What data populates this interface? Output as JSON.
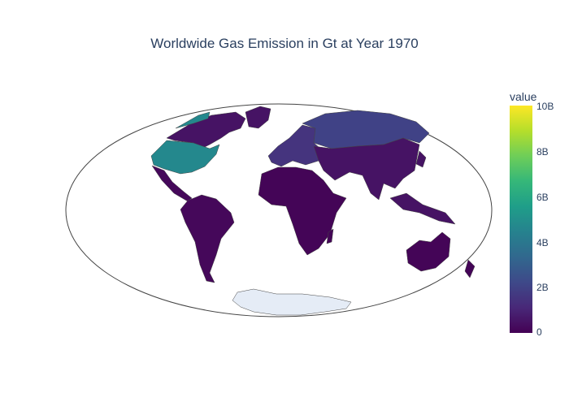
{
  "title": "Worldwide Gas Emission in Gt at Year 1970",
  "colorbar": {
    "title": "value",
    "ticks": [
      "10B",
      "8B",
      "6B",
      "4B",
      "2B",
      "0"
    ],
    "colors": [
      "#440154",
      "#482878",
      "#3e4989",
      "#31688e",
      "#26828e",
      "#1f9e89",
      "#35b779",
      "#6ece58",
      "#b5de2b",
      "#fde725"
    ],
    "range": [
      0,
      10000000000
    ]
  },
  "map": {
    "projection": "mollweide",
    "ocean_color": "#ffffff",
    "no_data_color": "#e5ecf6",
    "regions": [
      {
        "name": "United States",
        "value": 4700000000
      },
      {
        "name": "Canada",
        "value": 500000000
      },
      {
        "name": "Russia",
        "value": 2000000000
      },
      {
        "name": "Europe",
        "value": 1500000000
      },
      {
        "name": "Asia",
        "value": 500000000
      },
      {
        "name": "Africa",
        "value": 100000000
      },
      {
        "name": "South America",
        "value": 200000000
      },
      {
        "name": "Australia",
        "value": 100000000
      }
    ]
  }
}
